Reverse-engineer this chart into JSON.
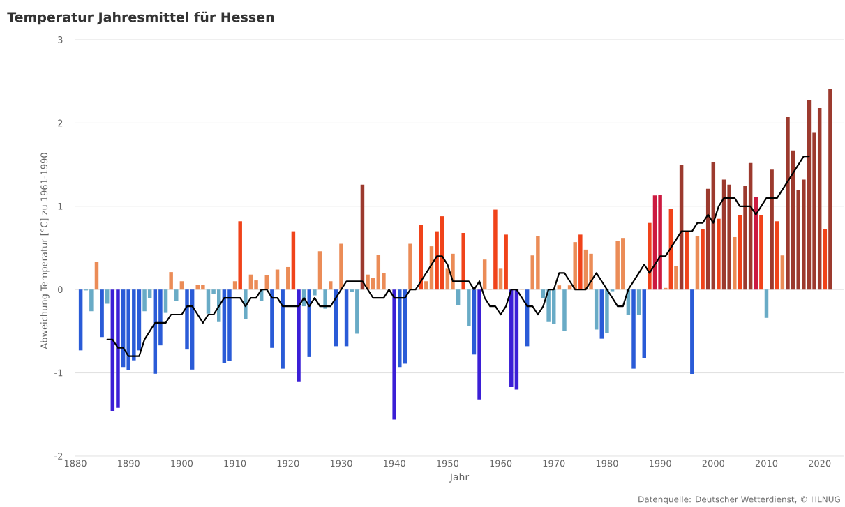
{
  "chart_data": {
    "type": "bar",
    "title": "Temperatur Jahresmittel für Hessen",
    "xlabel": "Jahr",
    "ylabel": "Abweichung Temperatur [°C] zu 1961-1990",
    "annotations": [
      "Datenquelle: Deutscher Wetterdienst, © HLNUG"
    ],
    "xlim": [
      1880,
      2024.5
    ],
    "xticks": [
      1880,
      1890,
      1900,
      1910,
      1920,
      1930,
      1940,
      1950,
      1960,
      1970,
      1980,
      1990,
      2000,
      2010,
      2020
    ],
    "ylim": [
      -2,
      3
    ],
    "yticks": [
      -2,
      -1,
      0,
      1,
      2,
      3
    ],
    "grid": "y",
    "series": [
      {
        "x": [
          1881,
          1882,
          1883,
          1884,
          1885,
          1886,
          1887,
          1888,
          1889,
          1890,
          1891,
          1892,
          1893,
          1894,
          1895,
          1896,
          1897,
          1898,
          1899,
          1900,
          1901,
          1902,
          1903,
          1904,
          1905,
          1906,
          1907,
          1908,
          1909,
          1910,
          1911,
          1912,
          1913,
          1914,
          1915,
          1916,
          1917,
          1918,
          1919,
          1920,
          1921,
          1922,
          1923,
          1924,
          1925,
          1926,
          1927,
          1928,
          1929,
          1930,
          1931,
          1932,
          1933,
          1934,
          1935,
          1936,
          1937,
          1938,
          1939,
          1940,
          1941,
          1942,
          1943,
          1944,
          1945,
          1946,
          1947,
          1948,
          1949,
          1950,
          1951,
          1952,
          1953,
          1954,
          1955,
          1956,
          1957,
          1958,
          1959,
          1960,
          1961,
          1962,
          1963,
          1964,
          1965,
          1966,
          1967,
          1968,
          1969,
          1970,
          1971,
          1972,
          1973,
          1974,
          1975,
          1976,
          1977,
          1978,
          1979,
          1980,
          1981,
          1982,
          1983,
          1984,
          1985,
          1986,
          1987,
          1988,
          1989,
          1990,
          1991,
          1992,
          1993,
          1994,
          1995,
          1996,
          1997,
          1998,
          1999,
          2000,
          2001,
          2002,
          2003,
          2004,
          2005,
          2006,
          2007,
          2008,
          2009,
          2010,
          2011,
          2012,
          2013,
          2014,
          2015,
          2016,
          2017,
          2018,
          2019,
          2020,
          2021,
          2022
        ],
        "values": [
          -0.73,
          -0.01,
          -0.26,
          0.33,
          -0.57,
          -0.17,
          -1.46,
          -1.42,
          -0.93,
          -0.97,
          -0.85,
          -0.73,
          -0.26,
          -0.1,
          -1.01,
          -0.67,
          -0.28,
          0.21,
          -0.14,
          0.1,
          -0.72,
          -0.96,
          0.06,
          0.06,
          -0.29,
          -0.05,
          -0.39,
          -0.88,
          -0.86,
          0.1,
          0.82,
          -0.35,
          0.18,
          0.11,
          -0.14,
          0.17,
          -0.7,
          0.24,
          -0.95,
          0.27,
          0.7,
          -1.11,
          -0.2,
          -0.81,
          -0.07,
          0.46,
          -0.23,
          0.1,
          -0.68,
          0.55,
          -0.68,
          -0.03,
          -0.53,
          1.26,
          0.18,
          0.14,
          0.42,
          0.2,
          null,
          -1.56,
          -0.93,
          -0.89,
          0.55,
          null,
          0.78,
          0.1,
          0.52,
          0.7,
          0.88,
          0.25,
          0.43,
          -0.19,
          0.68,
          -0.44,
          -0.78,
          -1.32,
          0.36,
          0.01,
          0.96,
          0.25,
          0.66,
          -1.17,
          -1.2,
          0.01,
          -0.68,
          0.41,
          0.64,
          -0.1,
          -0.39,
          -0.41,
          0.05,
          -0.5,
          0.05,
          0.57,
          0.66,
          0.48,
          0.43,
          -0.48,
          -0.59,
          -0.52,
          -0.02,
          0.58,
          0.62,
          -0.3,
          -0.95,
          -0.3,
          -0.82,
          0.8,
          1.13,
          1.14,
          0.02,
          0.97,
          0.28,
          1.5,
          0.69,
          -1.02,
          0.64,
          0.73,
          1.21,
          1.53,
          0.85,
          1.32,
          1.26,
          0.63,
          0.89,
          1.25,
          1.52,
          1.11,
          0.89,
          -0.34,
          1.44,
          0.82,
          0.41,
          2.07,
          1.67,
          1.2,
          1.32,
          2.28,
          1.89,
          2.18,
          0.73,
          2.41
        ],
        "colors": [
          "#2a5bd7",
          "#69abc6",
          "#69abc6",
          "#eb8c57",
          "#2a5bd7",
          "#69abc6",
          "#3b1fd6",
          "#3b1fd6",
          "#2a5bd7",
          "#2a5bd7",
          "#2a5bd7",
          "#2a5bd7",
          "#69abc6",
          "#69abc6",
          "#2a5bd7",
          "#2a5bd7",
          "#69abc6",
          "#eb8c57",
          "#69abc6",
          "#eb8c57",
          "#2a5bd7",
          "#2a5bd7",
          "#eb8c57",
          "#eb8c57",
          "#69abc6",
          "#69abc6",
          "#69abc6",
          "#2a5bd7",
          "#2a5bd7",
          "#eb8c57",
          "#f0431a",
          "#69abc6",
          "#eb8c57",
          "#eb8c57",
          "#69abc6",
          "#eb8c57",
          "#2a5bd7",
          "#eb8c57",
          "#2a5bd7",
          "#eb8c57",
          "#f0431a",
          "#3b1fd6",
          "#69abc6",
          "#2a5bd7",
          "#69abc6",
          "#eb8c57",
          "#69abc6",
          "#eb8c57",
          "#2a5bd7",
          "#eb8c57",
          "#2a5bd7",
          "#69abc6",
          "#69abc6",
          "#9c3a2e",
          "#eb8c57",
          "#eb8c57",
          "#eb8c57",
          "#eb8c57",
          "#69abc6",
          "#3b1fd6",
          "#2a5bd7",
          "#2a5bd7",
          "#eb8c57",
          "#eb8c57",
          "#f0431a",
          "#eb8c57",
          "#eb8c57",
          "#f0431a",
          "#f0431a",
          "#eb8c57",
          "#eb8c57",
          "#69abc6",
          "#f0431a",
          "#69abc6",
          "#2a5bd7",
          "#3b1fd6",
          "#eb8c57",
          "#eb8c57",
          "#f0431a",
          "#eb8c57",
          "#f0431a",
          "#3b1fd6",
          "#3b1fd6",
          "#eb8c57",
          "#2a5bd7",
          "#eb8c57",
          "#eb8c57",
          "#69abc6",
          "#69abc6",
          "#69abc6",
          "#eb8c57",
          "#69abc6",
          "#eb8c57",
          "#eb8c57",
          "#f0431a",
          "#eb8c57",
          "#eb8c57",
          "#69abc6",
          "#2a5bd7",
          "#69abc6",
          "#69abc6",
          "#eb8c57",
          "#eb8c57",
          "#69abc6",
          "#2a5bd7",
          "#69abc6",
          "#2a5bd7",
          "#f0431a",
          "#cc1a40",
          "#cc1a40",
          "#eb8c57",
          "#f0431a",
          "#eb8c57",
          "#9c3a2e",
          "#f0431a",
          "#2a5bd7",
          "#eb8c57",
          "#f0431a",
          "#9c3a2e",
          "#9c3a2e",
          "#f0431a",
          "#9c3a2e",
          "#9c3a2e",
          "#eb8c57",
          "#f0431a",
          "#9c3a2e",
          "#9c3a2e",
          "#cc1a40",
          "#f0431a",
          "#69abc6",
          "#9c3a2e",
          "#f0431a",
          "#eb8c57",
          "#9c3a2e",
          "#9c3a2e",
          "#9c3a2e",
          "#9c3a2e",
          "#9c3a2e",
          "#9c3a2e",
          "#9c3a2e",
          "#f0431a",
          "#9c3a2e"
        ]
      },
      {
        "type": "line",
        "color": "#000000",
        "x": [
          1886,
          1887,
          1888,
          1889,
          1890,
          1891,
          1892,
          1893,
          1894,
          1895,
          1896,
          1897,
          1898,
          1899,
          1900,
          1901,
          1902,
          1903,
          1904,
          1905,
          1906,
          1907,
          1908,
          1909,
          1910,
          1911,
          1912,
          1913,
          1914,
          1915,
          1916,
          1917,
          1918,
          1919,
          1920,
          1921,
          1922,
          1923,
          1924,
          1925,
          1926,
          1927,
          1928,
          1929,
          1930,
          1931,
          1932,
          1933,
          1934,
          1935,
          1936,
          1937,
          1938,
          1939,
          1940,
          1941,
          1942,
          1943,
          1944,
          1945,
          1946,
          1947,
          1948,
          1949,
          1950,
          1951,
          1952,
          1953,
          1954,
          1955,
          1956,
          1957,
          1958,
          1959,
          1960,
          1961,
          1962,
          1963,
          1964,
          1965,
          1966,
          1967,
          1968,
          1969,
          1970,
          1971,
          1972,
          1973,
          1974,
          1975,
          1976,
          1977,
          1978,
          1979,
          1980,
          1981,
          1982,
          1983,
          1984,
          1985,
          1986,
          1987,
          1988,
          1989,
          1990,
          1991,
          1992,
          1993,
          1994,
          1995,
          1996,
          1997,
          1998,
          1999,
          2000,
          2001,
          2002,
          2003,
          2004,
          2005,
          2006,
          2007,
          2008,
          2009,
          2010,
          2011,
          2012,
          2013,
          2014,
          2015,
          2016,
          2017,
          2018
        ],
        "values": [
          -0.6,
          -0.6,
          -0.7,
          -0.7,
          -0.8,
          -0.8,
          -0.8,
          -0.6,
          -0.5,
          -0.4,
          -0.4,
          -0.4,
          -0.3,
          -0.3,
          -0.3,
          -0.2,
          -0.2,
          -0.3,
          -0.4,
          -0.3,
          -0.3,
          -0.2,
          -0.1,
          -0.1,
          -0.1,
          -0.1,
          -0.2,
          -0.1,
          -0.1,
          0,
          0,
          -0.1,
          -0.1,
          -0.2,
          -0.2,
          -0.2,
          -0.2,
          -0.1,
          -0.2,
          -0.1,
          -0.2,
          -0.2,
          -0.2,
          -0.1,
          0,
          0.1,
          0.1,
          0.1,
          0.1,
          0,
          -0.1,
          -0.1,
          -0.1,
          0,
          -0.1,
          -0.1,
          -0.1,
          0,
          0,
          0.1,
          0.2,
          0.3,
          0.4,
          0.4,
          0.3,
          0.1,
          0.1,
          0.1,
          0.1,
          0,
          0.1,
          -0.1,
          -0.2,
          -0.2,
          -0.3,
          -0.2,
          0,
          0,
          -0.1,
          -0.2,
          -0.2,
          -0.3,
          -0.2,
          0,
          0,
          0.2,
          0.2,
          0.1,
          0,
          0,
          0,
          0.1,
          0.2,
          0.1,
          0,
          -0.1,
          -0.2,
          -0.2,
          0,
          0.1,
          0.2,
          0.3,
          0.2,
          0.3,
          0.4,
          0.4,
          0.5,
          0.6,
          0.7,
          0.7,
          0.7,
          0.8,
          0.8,
          0.9,
          0.8,
          1.0,
          1.1,
          1.1,
          1.1,
          1.0,
          1.0,
          1.0,
          0.9,
          1.0,
          1.1,
          1.1,
          1.1,
          1.2,
          1.3,
          1.4,
          1.5,
          1.6,
          1.6
        ]
      }
    ]
  }
}
